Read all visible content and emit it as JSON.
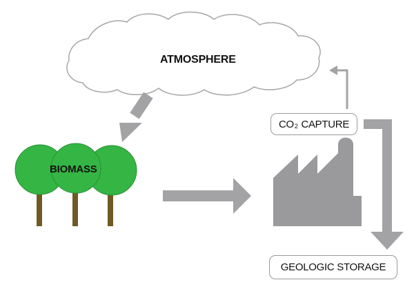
{
  "nodes": {
    "atmosphere": {
      "label": "ATMOSPHERE"
    },
    "biomass": {
      "label": "BIOMASS"
    },
    "co2_capture": {
      "label_prefix": "CO",
      "label_subscript": "2",
      "label_suffix": " CAPTURE"
    },
    "geologic_storage": {
      "label": "GEOLOGIC STORAGE"
    }
  },
  "icons": {
    "cloud": "cloud-icon",
    "trees": "tree-icon",
    "factory": "factory-icon"
  },
  "colors": {
    "arrow": "#a3a3a6",
    "tree_canopy": "#35b544",
    "tree_canopy_outline": "#2a8f36",
    "tree_trunk": "#6e5a23",
    "factory": "#9a9a9c",
    "cloud_outline": "#a6a6a6",
    "box_border": "#9a9a9a"
  }
}
